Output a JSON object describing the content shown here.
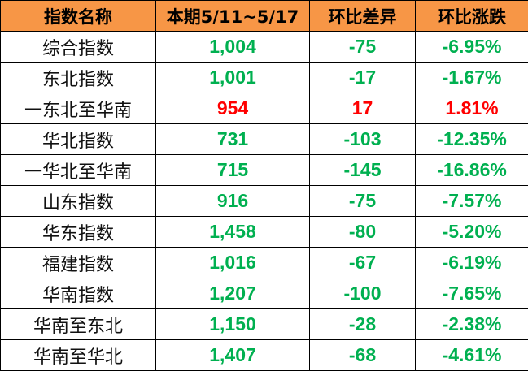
{
  "headers": [
    "指数名称",
    "本期5/11~5/17",
    "环比差异",
    "环比涨跌"
  ],
  "colors": {
    "header_bg": "#F79646",
    "positive": "#FF0000",
    "negative": "#00B050"
  },
  "rows": [
    {
      "name": "综合指数",
      "current": "1,004",
      "diff": "-75",
      "pct": "-6.95%",
      "trend": "down"
    },
    {
      "name": "东北指数",
      "current": "1,001",
      "diff": "-17",
      "pct": "-1.67%",
      "trend": "down"
    },
    {
      "name": "一东北至华南",
      "current": "954",
      "diff": "17",
      "pct": "1.81%",
      "trend": "up"
    },
    {
      "name": "华北指数",
      "current": "731",
      "diff": "-103",
      "pct": "-12.35%",
      "trend": "down"
    },
    {
      "name": "一华北至华南",
      "current": "715",
      "diff": "-145",
      "pct": "-16.86%",
      "trend": "down"
    },
    {
      "name": "山东指数",
      "current": "916",
      "diff": "-75",
      "pct": "-7.57%",
      "trend": "down"
    },
    {
      "name": "华东指数",
      "current": "1,458",
      "diff": "-80",
      "pct": "-5.20%",
      "trend": "down"
    },
    {
      "name": "福建指数",
      "current": "1,016",
      "diff": "-67",
      "pct": "-6.19%",
      "trend": "down"
    },
    {
      "name": "华南指数",
      "current": "1,207",
      "diff": "-100",
      "pct": "-7.65%",
      "trend": "down"
    },
    {
      "name": "华南至东北",
      "current": "1,150",
      "diff": "-28",
      "pct": "-2.38%",
      "trend": "down"
    },
    {
      "name": "华南至华北",
      "current": "1,407",
      "diff": "-68",
      "pct": "-4.61%",
      "trend": "down"
    }
  ]
}
